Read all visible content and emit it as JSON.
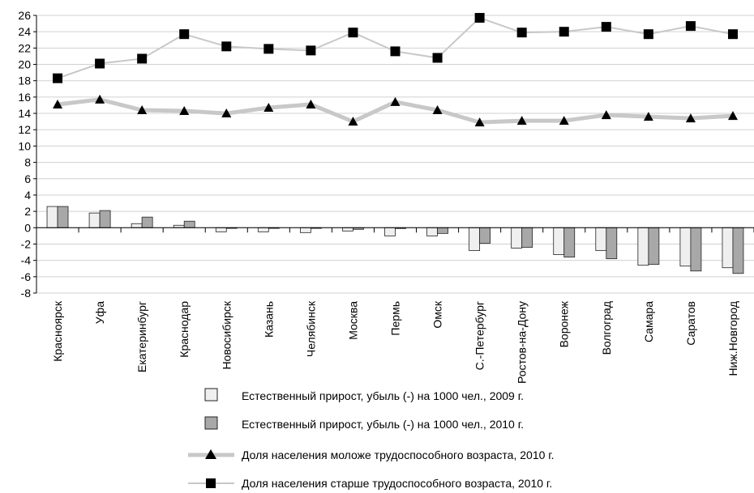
{
  "chart_data": {
    "type": "bar",
    "categories": [
      "Красноярск",
      "Уфа",
      "Екатеринбург",
      "Краснодар",
      "Новосибирск",
      "Казань",
      "Челябинск",
      "Москва",
      "Пермь",
      "Омск",
      "С.-Петербург",
      "Ростов-на-Дону",
      "Воронеж",
      "Волгоград",
      "Самара",
      "Саратов",
      "Ниж.Новгород"
    ],
    "ylim": [
      -8,
      26
    ],
    "yticks": [
      26,
      24,
      22,
      20,
      18,
      16,
      14,
      12,
      10,
      8,
      6,
      4,
      2,
      0,
      -2,
      -4,
      -6,
      -8
    ],
    "grid": true,
    "legend_position": "bottom",
    "series": [
      {
        "name": "Естественный прирост, убыль (-) на 1000 чел., 2009 г.",
        "kind": "bar",
        "color": "#efefef",
        "values": [
          2.6,
          1.8,
          0.5,
          0.3,
          -0.5,
          -0.5,
          -0.6,
          -0.4,
          -1.0,
          -1.0,
          -2.8,
          -2.5,
          -3.3,
          -2.8,
          -4.6,
          -4.7,
          -4.9
        ]
      },
      {
        "name": "Естественный прирост, убыль (-) на 1000 чел., 2010 г.",
        "kind": "bar",
        "color": "#a8a8a8",
        "values": [
          2.6,
          2.1,
          1.3,
          0.8,
          0.0,
          0.0,
          0.0,
          -0.2,
          -0.1,
          -0.7,
          -1.9,
          -2.4,
          -3.6,
          -3.8,
          -4.5,
          -5.3,
          -5.6
        ]
      },
      {
        "name": "Доля населения моложе трудоспособного возраста, 2010 г.",
        "kind": "line",
        "marker": "triangle",
        "color": "#c8c8c8",
        "values": [
          15.1,
          15.7,
          14.4,
          14.3,
          14.0,
          14.7,
          15.1,
          13.0,
          15.4,
          14.4,
          12.9,
          13.1,
          13.1,
          13.8,
          13.6,
          13.4,
          13.7
        ]
      },
      {
        "name": "Доля населения старше трудоспособного возраста, 2010 г.",
        "kind": "line",
        "marker": "square",
        "color": "#c8c8c8",
        "values": [
          18.3,
          20.1,
          20.7,
          23.7,
          22.2,
          21.9,
          21.7,
          23.9,
          21.6,
          20.8,
          25.7,
          23.9,
          24.0,
          24.6,
          23.7,
          24.7,
          23.7
        ]
      }
    ]
  }
}
